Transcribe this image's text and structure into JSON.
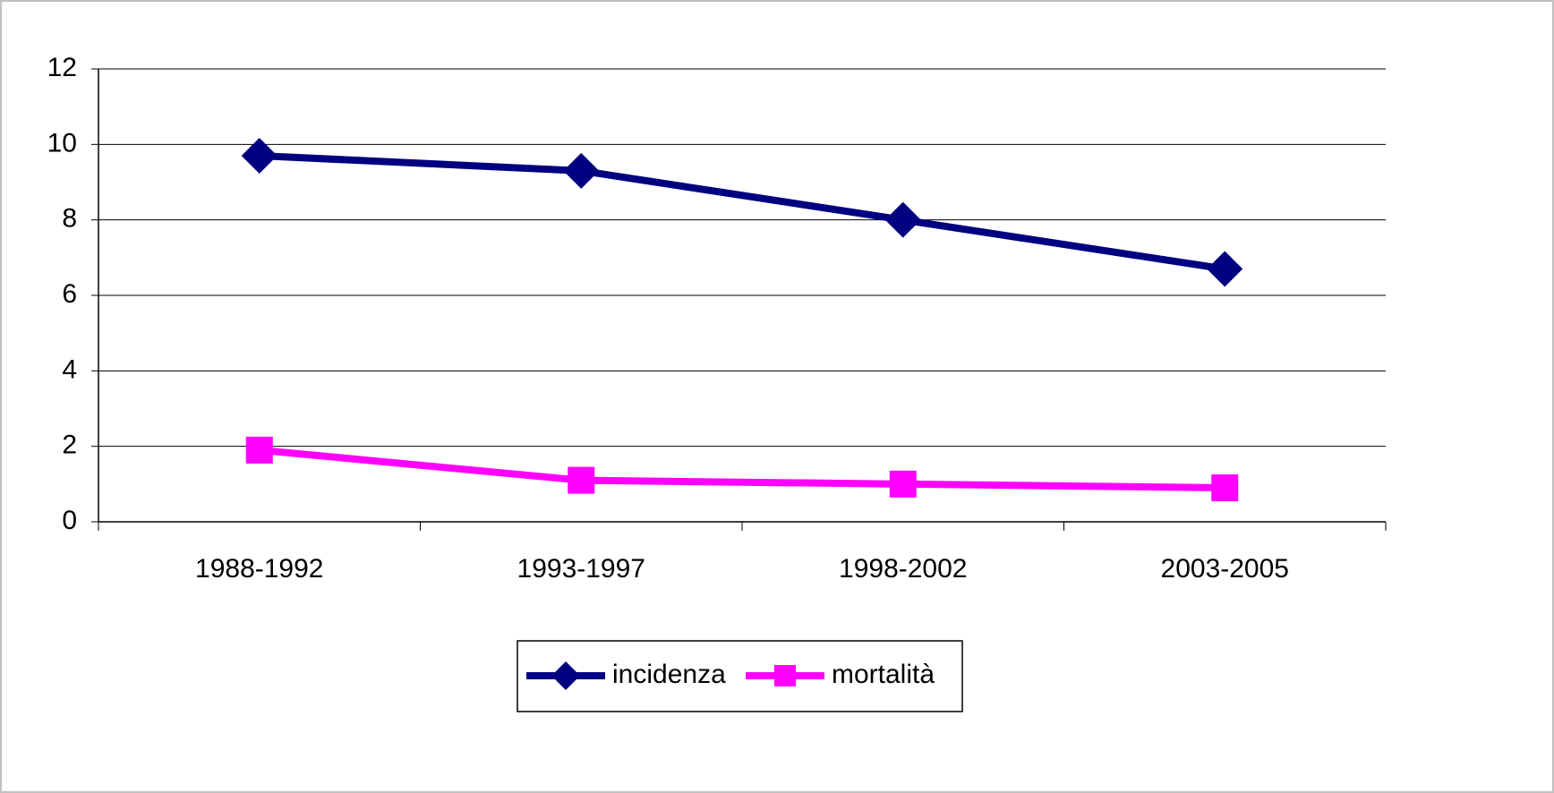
{
  "chart_data": {
    "type": "line",
    "categories": [
      "1988-1992",
      "1993-1997",
      "1998-2002",
      "2003-2005"
    ],
    "series": [
      {
        "name": "incidenza",
        "color": "#000080",
        "marker": "diamond",
        "values": [
          9.7,
          9.3,
          8.0,
          6.7
        ]
      },
      {
        "name": "mortalità",
        "color": "#ff00ff",
        "marker": "square",
        "values": [
          1.9,
          1.1,
          1.0,
          0.9
        ]
      }
    ],
    "ylim": [
      0,
      12
    ],
    "yticks": [
      0,
      2,
      4,
      6,
      8,
      10,
      12
    ],
    "grid": true,
    "legend": "bottom"
  }
}
